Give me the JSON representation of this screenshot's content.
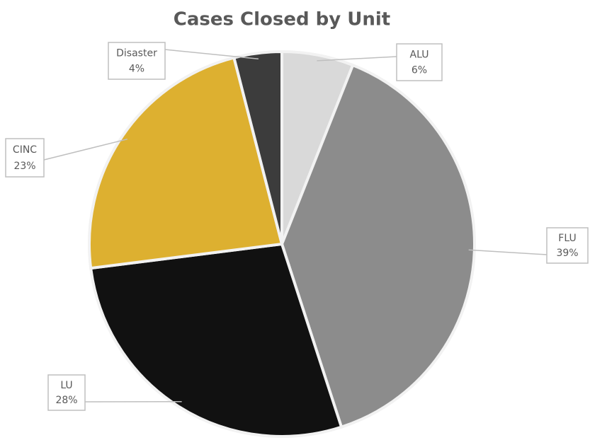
{
  "chart_data": {
    "type": "pie",
    "title": "Cases Closed by Unit",
    "categories": [
      "ALU",
      "FLU",
      "LU",
      "CINC",
      "Disaster"
    ],
    "values": [
      6,
      39,
      28,
      23,
      4
    ],
    "value_labels": [
      "6%",
      "39%",
      "28%",
      "23%",
      "4%"
    ],
    "colors": [
      "#d9d9d9",
      "#8c8c8c",
      "#111111",
      "#ddb030",
      "#3c3c3c"
    ]
  }
}
